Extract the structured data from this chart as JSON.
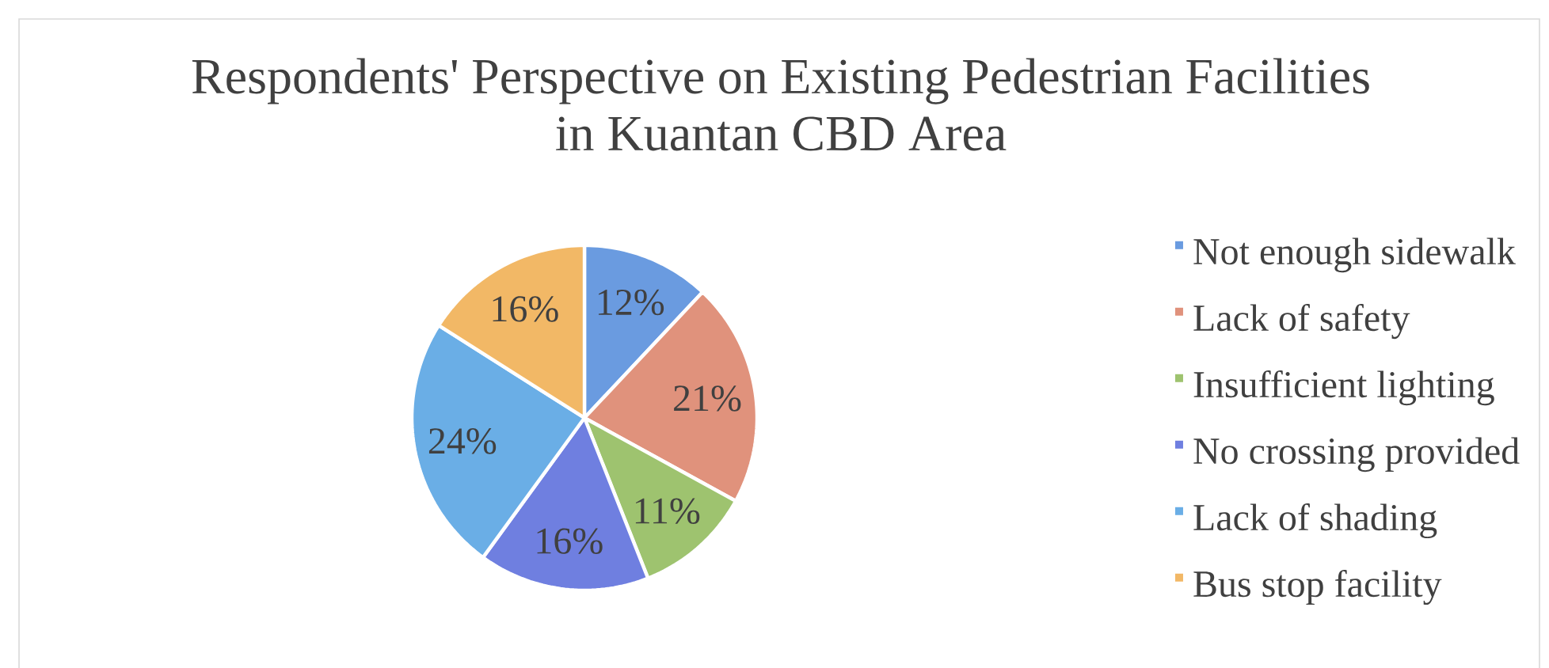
{
  "chart_data": {
    "type": "pie",
    "title": "Respondents' Perspective on Existing Pedestrian Facilities in Kuantan CBD Area",
    "categories": [
      "Not enough sidewalk",
      "Lack of safety",
      "Insufficient lighting",
      "No crossing provided",
      "Lack of shading",
      "Bus stop facility"
    ],
    "values": [
      12,
      21,
      11,
      16,
      24,
      16
    ],
    "value_labels": [
      "12%",
      "21%",
      "11%",
      "16%",
      "24%",
      "16%"
    ],
    "colors": [
      "#6a9be0",
      "#e0927c",
      "#9ec36f",
      "#6f7fe0",
      "#6aaee6",
      "#f2b866"
    ],
    "legend": "right"
  }
}
